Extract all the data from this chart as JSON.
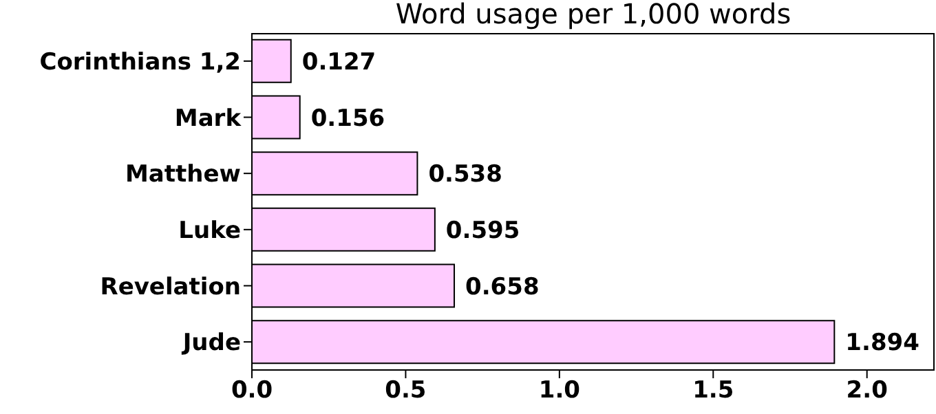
{
  "chart_data": {
    "type": "bar",
    "orientation": "horizontal",
    "title": "Word usage per 1,000 words",
    "categories": [
      "Corinthians 1,2",
      "Mark",
      "Matthew",
      "Luke",
      "Revelation",
      "Jude"
    ],
    "values": [
      0.127,
      0.156,
      0.538,
      0.595,
      0.658,
      1.894
    ],
    "color": "#ffccff",
    "xlim": [
      0,
      2.22
    ],
    "xticks": [
      {
        "value": 0,
        "label": "0.0"
      },
      0.5,
      {
        "value": 1,
        "label": "1.0"
      },
      1.5,
      {
        "value": 2,
        "label": "2.0"
      }
    ],
    "data_labels": true,
    "grid": false
  }
}
